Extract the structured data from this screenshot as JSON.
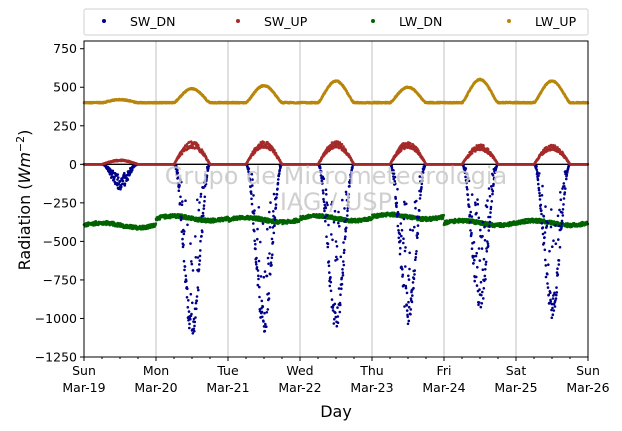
{
  "chart_data": {
    "type": "scatter",
    "title": "",
    "xlabel": "Day",
    "ylabel_main": "Radiation (",
    "ylabel_unit_base": "Wm",
    "ylabel_unit_exp": "−2",
    "ylabel_close": ")",
    "ylim": [
      -1250,
      800
    ],
    "yticks": [
      -1250,
      -1000,
      -750,
      -500,
      -250,
      0,
      250,
      500,
      750
    ],
    "ytick_labels": [
      "−1250",
      "−1000",
      "−750",
      "−500",
      "−250",
      "0",
      "250",
      "500",
      "750"
    ],
    "xlim_days": [
      0,
      7
    ],
    "xticks": [
      {
        "day": "Sun",
        "date": "Mar-19"
      },
      {
        "day": "Mon",
        "date": "Mar-20"
      },
      {
        "day": "Tue",
        "date": "Mar-21"
      },
      {
        "day": "Wed",
        "date": "Mar-22"
      },
      {
        "day": "Thu",
        "date": "Mar-23"
      },
      {
        "day": "Fri",
        "date": "Mar-24"
      },
      {
        "day": "Sat",
        "date": "Mar-25"
      },
      {
        "day": "Sun",
        "date": "Mar-26"
      }
    ],
    "grid": "vertical",
    "legend_position": "top",
    "watermark_line1": "Grupo de Micrometeorologia",
    "watermark_line2": "IAG / USP",
    "series": [
      {
        "name": "SW_DN",
        "color": "#00008b",
        "daily_peak_min": [
          -230,
          -1130,
          -1100,
          -1080,
          -1040,
          -950,
          -1000
        ]
      },
      {
        "name": "SW_UP",
        "color": "#a52a2a",
        "daily_peak_max": [
          30,
          150,
          150,
          150,
          150,
          130,
          130
        ]
      },
      {
        "name": "LW_DN",
        "color": "#006400",
        "daily_mean": [
          -395,
          -350,
          -360,
          -350,
          -340,
          -380,
          -380
        ]
      },
      {
        "name": "LW_UP",
        "color": "#b8860b",
        "daily_peak_max": [
          420,
          490,
          510,
          540,
          500,
          550,
          540
        ],
        "night_baseline": 400
      }
    ]
  }
}
